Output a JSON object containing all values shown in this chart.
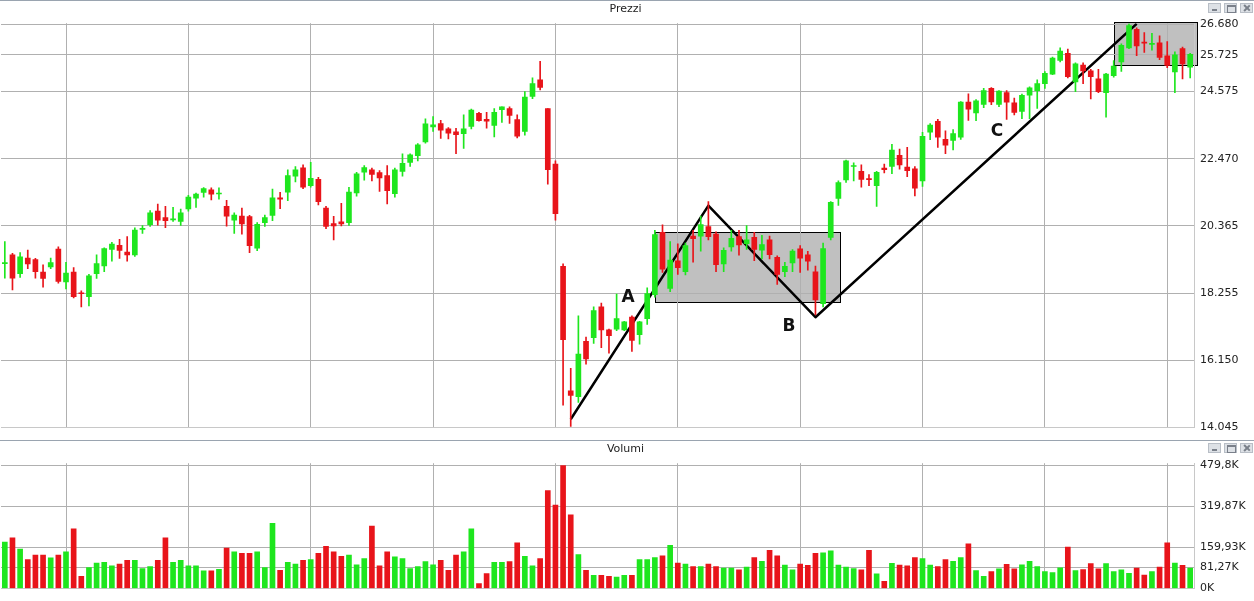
{
  "chart_data": [
    {
      "type": "candlestick",
      "title": "Prezzi",
      "categories": [
        null,
        null,
        null,
        null,
        null,
        null,
        null,
        null,
        null,
        null,
        null,
        null,
        null,
        null,
        null,
        null,
        null,
        null,
        null,
        null,
        null,
        null,
        null,
        null,
        null,
        null,
        null,
        null,
        null,
        null,
        null,
        null,
        null,
        null,
        null,
        null,
        null,
        null,
        null,
        null,
        null,
        null,
        null,
        null,
        null,
        null,
        null,
        null,
        null,
        null,
        null,
        null,
        null,
        null,
        null,
        null,
        null,
        null,
        null,
        null,
        null,
        null,
        null,
        null,
        null,
        null,
        null,
        null,
        null,
        null,
        null,
        null,
        null,
        null,
        null,
        null,
        null,
        null,
        null,
        null,
        null,
        null,
        null,
        null,
        null,
        null,
        null,
        null,
        null,
        null,
        null,
        null,
        null,
        null,
        null,
        null,
        null,
        null,
        null,
        null,
        null,
        null,
        null,
        null,
        null,
        null,
        null,
        null,
        null,
        null,
        null,
        null,
        null,
        null,
        null,
        null,
        null,
        null,
        null,
        null,
        null,
        null,
        null,
        null,
        null,
        null,
        null,
        null,
        null,
        null,
        null,
        null,
        null,
        null,
        null,
        null,
        null,
        null,
        null,
        null,
        null,
        null,
        null,
        null,
        null,
        null,
        null,
        null,
        null,
        null,
        null,
        null,
        null,
        null,
        null,
        null
      ],
      "ohlc": [
        [
          19180,
          19875,
          18725,
          19200
        ],
        [
          19455,
          19505,
          18355,
          18725
        ],
        [
          18865,
          19525,
          18745,
          19395
        ],
        [
          19355,
          19605,
          19025,
          19175
        ],
        [
          19305,
          19345,
          18725,
          18925
        ],
        [
          18915,
          19145,
          18445,
          18715
        ],
        [
          19075,
          19355,
          19025,
          19215
        ],
        [
          19635,
          19705,
          18565,
          18625
        ],
        [
          18605,
          19225,
          18385,
          18885
        ],
        [
          18915,
          19055,
          18105,
          18145
        ],
        [
          18255,
          18325,
          17825,
          18235
        ],
        [
          18145,
          18845,
          17855,
          18795
        ],
        [
          18865,
          19455,
          18715,
          19185
        ],
        [
          19105,
          19675,
          18925,
          19655
        ],
        [
          19625,
          19845,
          19255,
          19795
        ],
        [
          19755,
          19945,
          19345,
          19595
        ],
        [
          19545,
          20025,
          19255,
          19455
        ],
        [
          19455,
          20305,
          19405,
          20235
        ],
        [
          20255,
          20375,
          20125,
          20275
        ],
        [
          20405,
          20845,
          20345,
          20775
        ],
        [
          20825,
          21045,
          20385,
          20545
        ],
        [
          20625,
          20975,
          20305,
          20525
        ],
        [
          20555,
          20945,
          20505,
          20565
        ],
        [
          20505,
          20895,
          20375,
          20775
        ],
        [
          20895,
          21325,
          20825,
          21265
        ],
        [
          21235,
          21395,
          20945,
          21365
        ],
        [
          21415,
          21565,
          21265,
          21535
        ],
        [
          21495,
          21555,
          21175,
          21355
        ],
        [
          21365,
          21555,
          21205,
          21375
        ],
        [
          20975,
          21165,
          20355,
          20665
        ],
        [
          20545,
          20775,
          20125,
          20705
        ],
        [
          20675,
          20925,
          20105,
          20425
        ],
        [
          20655,
          20695,
          19525,
          19745
        ],
        [
          19665,
          20465,
          19585,
          20415
        ],
        [
          20465,
          20705,
          20345,
          20625
        ],
        [
          20695,
          21515,
          20525,
          21245
        ],
        [
          21245,
          21415,
          20905,
          21205
        ],
        [
          21425,
          22125,
          21155,
          21945
        ],
        [
          21925,
          22225,
          21745,
          22125
        ],
        [
          22185,
          22275,
          21535,
          21575
        ],
        [
          21625,
          22355,
          21575,
          21855
        ],
        [
          21825,
          21885,
          21025,
          21125
        ],
        [
          20925,
          20975,
          20275,
          20345
        ],
        [
          20435,
          20665,
          19925,
          20365
        ],
        [
          20495,
          21075,
          20365,
          20425
        ],
        [
          20465,
          21575,
          20375,
          21425
        ],
        [
          21395,
          22045,
          21295,
          21995
        ],
        [
          22045,
          22255,
          21795,
          22195
        ],
        [
          22125,
          22175,
          21775,
          21975
        ],
        [
          22035,
          22095,
          21445,
          21865
        ],
        [
          21945,
          22255,
          21055,
          21465
        ],
        [
          21375,
          22175,
          21265,
          22125
        ],
        [
          22075,
          22625,
          21925,
          22325
        ],
        [
          22355,
          22625,
          22225,
          22595
        ],
        [
          22565,
          22945,
          22405,
          22905
        ],
        [
          22995,
          23725,
          22955,
          23565
        ],
        [
          23465,
          23795,
          23325,
          23535
        ],
        [
          23575,
          23675,
          23105,
          23365
        ],
        [
          23405,
          23445,
          23095,
          23275
        ],
        [
          23315,
          23425,
          22625,
          23225
        ],
        [
          23255,
          23845,
          22795,
          23405
        ],
        [
          23485,
          24025,
          23405,
          23995
        ],
        [
          23895,
          23925,
          23645,
          23665
        ],
        [
          23705,
          23925,
          23425,
          23645
        ],
        [
          23515,
          24045,
          23155,
          23925
        ],
        [
          24005,
          24095,
          23605,
          24095
        ],
        [
          24045,
          24095,
          23575,
          23825
        ],
        [
          23695,
          23845,
          23125,
          23175
        ],
        [
          23325,
          24575,
          23205,
          24405
        ],
        [
          24425,
          25005,
          24355,
          24825
        ],
        [
          24945,
          25525,
          24625,
          24705
        ],
        [
          24045,
          24045,
          21675,
          22125
        ],
        [
          22305,
          22405,
          20545,
          20745
        ],
        [
          19095,
          19175,
          14745,
          16795
        ],
        [
          15195,
          15895,
          14075,
          15045
        ],
        [
          15005,
          17545,
          14825,
          16345
        ],
        [
          16745,
          16875,
          16025,
          16195
        ],
        [
          16855,
          17825,
          16675,
          17705
        ],
        [
          17825,
          17945,
          16545,
          17105
        ],
        [
          17105,
          17125,
          16375,
          16925
        ],
        [
          17125,
          18225,
          17075,
          17455
        ],
        [
          17105,
          17375,
          17075,
          17355
        ],
        [
          17505,
          17545,
          16425,
          16775
        ],
        [
          16955,
          17375,
          16655,
          17355
        ],
        [
          17455,
          18425,
          17275,
          18245
        ],
        [
          18205,
          20225,
          18125,
          20095
        ],
        [
          20165,
          20395,
          18905,
          19005
        ],
        [
          18405,
          19875,
          18305,
          19295
        ],
        [
          19265,
          19805,
          18845,
          19055
        ],
        [
          18925,
          19825,
          18825,
          19745
        ],
        [
          20045,
          20225,
          19225,
          19965
        ],
        [
          20045,
          20675,
          19575,
          20405
        ],
        [
          20345,
          21125,
          19925,
          20025
        ],
        [
          20105,
          20175,
          18925,
          19145
        ],
        [
          19175,
          19675,
          18925,
          19595
        ],
        [
          19705,
          20225,
          19575,
          19975
        ],
        [
          20025,
          20225,
          19445,
          19765
        ],
        [
          19805,
          20375,
          19625,
          19925
        ],
        [
          20005,
          20165,
          19275,
          19625
        ],
        [
          19605,
          20065,
          19325,
          19775
        ],
        [
          19925,
          20045,
          19325,
          19465
        ],
        [
          19375,
          19425,
          18525,
          18845
        ],
        [
          18925,
          19225,
          18775,
          19095
        ],
        [
          19205,
          19625,
          18925,
          19575
        ],
        [
          19645,
          19745,
          18905,
          19355
        ],
        [
          19455,
          19565,
          18975,
          19255
        ],
        [
          18925,
          19105,
          17575,
          18045
        ],
        [
          17925,
          19825,
          17825,
          19655
        ],
        [
          20005,
          21125,
          19925,
          21105
        ],
        [
          21225,
          21775,
          21005,
          21725
        ],
        [
          21805,
          22425,
          21725,
          22405
        ],
        [
          22225,
          22345,
          21775,
          22235
        ],
        [
          22075,
          22275,
          21575,
          21825
        ],
        [
          21835,
          21975,
          21625,
          21815
        ],
        [
          21625,
          22075,
          20975,
          22045
        ],
        [
          22175,
          22305,
          22025,
          22125
        ],
        [
          22225,
          22925,
          22005,
          22745
        ],
        [
          22575,
          22775,
          22145,
          22275
        ],
        [
          22205,
          22825,
          21905,
          22095
        ],
        [
          22155,
          22225,
          21305,
          21545
        ],
        [
          21775,
          23295,
          21605,
          23175
        ],
        [
          23305,
          23575,
          23065,
          23525
        ],
        [
          23645,
          23705,
          22825,
          23145
        ],
        [
          23075,
          23345,
          22625,
          22895
        ],
        [
          23045,
          23385,
          22745,
          23255
        ],
        [
          23145,
          24265,
          23075,
          24245
        ],
        [
          24245,
          24505,
          23675,
          24025
        ],
        [
          23905,
          24325,
          23665,
          24285
        ],
        [
          24175,
          24675,
          24075,
          24605
        ],
        [
          24675,
          24705,
          24165,
          24255
        ],
        [
          24175,
          24605,
          24105,
          24595
        ],
        [
          24545,
          24605,
          23705,
          24245
        ],
        [
          24225,
          24375,
          23845,
          23925
        ],
        [
          23955,
          24495,
          23725,
          24455
        ],
        [
          24465,
          24725,
          23725,
          24695
        ],
        [
          24605,
          24945,
          24045,
          24825
        ],
        [
          24825,
          25205,
          24675,
          25145
        ],
        [
          25125,
          25655,
          25105,
          25625
        ],
        [
          25555,
          25945,
          25505,
          25845
        ],
        [
          25775,
          25905,
          25005,
          25045
        ],
        [
          24875,
          25475,
          24575,
          25445
        ],
        [
          25405,
          25475,
          24825,
          25225
        ],
        [
          25225,
          25275,
          24345,
          25045
        ],
        [
          24975,
          25275,
          24545,
          24575
        ],
        [
          24545,
          25145,
          23775,
          25125
        ],
        [
          25075,
          25545,
          25025,
          25375
        ],
        [
          25505,
          26075,
          25205,
          26025
        ],
        [
          25945,
          26700,
          25925,
          26645
        ],
        [
          26525,
          26575,
          25705,
          26005
        ],
        [
          26125,
          26425,
          25805,
          26095
        ],
        [
          26055,
          26405,
          25875,
          26075
        ],
        [
          26105,
          26325,
          25575,
          25645
        ],
        [
          25695,
          26145,
          25325,
          25395
        ],
        [
          25195,
          25825,
          24545,
          25725
        ],
        [
          25925,
          25975,
          24975,
          25445
        ],
        [
          25345,
          25775,
          25005,
          25745
        ]
      ],
      "colors": [
        "#1ee61e",
        "#e8141a",
        "#1ee61e",
        "#e8141a",
        "#e8141a",
        "#e8141a",
        "#1ee61e",
        "#e8141a",
        "#1ee61e",
        "#e8141a",
        "#e8141a",
        "#1ee61e",
        "#1ee61e",
        "#1ee61e",
        "#1ee61e",
        "#e8141a",
        "#e8141a",
        "#1ee61e",
        "#1ee61e",
        "#1ee61e",
        "#e8141a",
        "#e8141a",
        "#1ee61e",
        "#1ee61e",
        "#1ee61e",
        "#1ee61e",
        "#1ee61e",
        "#e8141a",
        "#1ee61e",
        "#e8141a",
        "#1ee61e",
        "#e8141a",
        "#e8141a",
        "#1ee61e",
        "#1ee61e",
        "#1ee61e",
        "#e8141a",
        "#1ee61e",
        "#1ee61e",
        "#e8141a",
        "#1ee61e",
        "#e8141a",
        "#e8141a",
        "#e8141a",
        "#e8141a",
        "#1ee61e",
        "#1ee61e",
        "#1ee61e",
        "#e8141a",
        "#e8141a",
        "#e8141a",
        "#1ee61e",
        "#1ee61e",
        "#1ee61e",
        "#1ee61e",
        "#1ee61e",
        "#1ee61e",
        "#e8141a",
        "#e8141a",
        "#e8141a",
        "#1ee61e",
        "#1ee61e",
        "#e8141a",
        "#e8141a",
        "#1ee61e",
        "#1ee61e",
        "#e8141a",
        "#e8141a",
        "#1ee61e",
        "#1ee61e",
        "#e8141a",
        "#e8141a",
        "#e8141a",
        "#e8141a",
        "#e8141a",
        "#1ee61e",
        "#e8141a",
        "#1ee61e",
        "#e8141a",
        "#e8141a",
        "#1ee61e",
        "#1ee61e",
        "#e8141a",
        "#1ee61e",
        "#1ee61e",
        "#1ee61e",
        "#e8141a",
        "#1ee61e",
        "#e8141a",
        "#1ee61e",
        "#e8141a",
        "#1ee61e",
        "#e8141a",
        "#e8141a",
        "#1ee61e",
        "#1ee61e",
        "#e8141a",
        "#1ee61e",
        "#e8141a",
        "#1ee61e",
        "#e8141a",
        "#e8141a",
        "#1ee61e",
        "#1ee61e",
        "#e8141a",
        "#e8141a",
        "#e8141a",
        "#1ee61e",
        "#1ee61e",
        "#1ee61e",
        "#1ee61e",
        "#1ee61e",
        "#e8141a",
        "#e8141a",
        "#1ee61e",
        "#e8141a",
        "#1ee61e",
        "#e8141a",
        "#e8141a",
        "#e8141a",
        "#1ee61e",
        "#1ee61e",
        "#e8141a",
        "#e8141a",
        "#1ee61e",
        "#1ee61e",
        "#e8141a",
        "#1ee61e",
        "#1ee61e",
        "#e8141a",
        "#1ee61e",
        "#e8141a",
        "#e8141a",
        "#1ee61e",
        "#1ee61e",
        "#1ee61e",
        "#1ee61e",
        "#1ee61e",
        "#1ee61e",
        "#e8141a",
        "#1ee61e",
        "#e8141a",
        "#e8141a",
        "#e8141a",
        "#1ee61e",
        "#1ee61e",
        "#1ee61e",
        "#1ee61e",
        "#e8141a",
        "#e8141a",
        "#1ee61e",
        "#e8141a",
        "#e8141a",
        "#1ee61e",
        "#e8141a",
        "#1ee61e"
      ],
      "series": [
        {
          "type": "line",
          "color": "#000000",
          "values": [
            null,
            null,
            null,
            null,
            null,
            null,
            null,
            null,
            null,
            null,
            null,
            null,
            null,
            null,
            null,
            null,
            null,
            null,
            null,
            null,
            null,
            null,
            null,
            null,
            null,
            null,
            null,
            null,
            null,
            null,
            null,
            null,
            null,
            null,
            null,
            null,
            null,
            null,
            null,
            null,
            null,
            null,
            null,
            null,
            null,
            null,
            null,
            null,
            null,
            null,
            null,
            null,
            null,
            null,
            null,
            null,
            null,
            null,
            null,
            null,
            null,
            null,
            null,
            null,
            null,
            null,
            null,
            null,
            null,
            null,
            null,
            null,
            null,
            null,
            14300,
            null,
            null,
            null,
            null,
            null,
            null,
            null,
            null,
            null,
            null,
            null,
            null,
            null,
            null,
            null,
            null,
            null,
            21000,
            null,
            null,
            null,
            null,
            null,
            null,
            null,
            null,
            null,
            null,
            null,
            null,
            null,
            17500,
            null,
            null,
            null,
            null,
            null,
            null,
            null,
            null,
            null,
            null,
            null,
            null,
            null,
            null,
            null,
            null,
            null,
            null,
            null,
            null,
            null,
            null,
            null,
            null,
            null,
            null,
            null,
            null,
            null,
            null,
            null,
            null,
            null,
            null,
            null,
            null,
            null,
            null,
            null,
            null,
            null,
            26700,
            null,
            null,
            null,
            null,
            null,
            null,
            null
          ]
        }
      ],
      "ylim": [
        14045,
        26720
      ],
      "yticks": [
        {
          "value": 14045,
          "label": "14.045"
        },
        {
          "value": 16150,
          "label": "16.150"
        },
        {
          "value": 18255,
          "label": "18.255"
        },
        {
          "value": 20365,
          "label": "20.365"
        },
        {
          "value": 22470,
          "label": "22.470"
        },
        {
          "value": 24575,
          "label": "24.575"
        },
        {
          "value": 25725,
          "label": "25.725"
        },
        {
          "value": 26680,
          "label": "26.680"
        }
      ],
      "grid": true,
      "tick_labels": "y",
      "annotations": [
        "A",
        "B",
        "C"
      ]
    },
    {
      "type": "bar",
      "title": "Volumi",
      "categories": [
        null,
        null,
        null,
        null,
        null,
        null,
        null,
        null,
        null,
        null,
        null,
        null,
        null,
        null,
        null,
        null,
        null,
        null,
        null,
        null,
        null,
        null,
        null,
        null,
        null,
        null,
        null,
        null,
        null,
        null,
        null,
        null,
        null,
        null,
        null,
        null,
        null,
        null,
        null,
        null,
        null,
        null,
        null,
        null,
        null,
        null,
        null,
        null,
        null,
        null,
        null,
        null,
        null,
        null,
        null,
        null,
        null,
        null,
        null,
        null,
        null,
        null,
        null,
        null,
        null,
        null,
        null,
        null,
        null,
        null,
        null,
        null,
        null,
        null,
        null,
        null,
        null,
        null,
        null,
        null,
        null,
        null,
        null,
        null,
        null,
        null,
        null,
        null,
        null,
        null,
        null,
        null,
        null,
        null,
        null,
        null,
        null,
        null,
        null,
        null,
        null,
        null,
        null,
        null,
        null,
        null,
        null,
        null,
        null,
        null,
        null,
        null,
        null,
        null,
        null,
        null,
        null,
        null,
        null,
        null,
        null,
        null,
        null,
        null,
        null,
        null,
        null,
        null,
        null,
        null,
        null,
        null,
        null,
        null,
        null,
        null,
        null,
        null,
        null,
        null,
        null,
        null,
        null,
        null,
        null,
        null,
        null,
        null,
        null,
        null,
        null,
        null,
        null,
        null,
        null,
        null
      ],
      "values": [
        181,
        197,
        153,
        112,
        130,
        130,
        119,
        130,
        143,
        232,
        47,
        81,
        99,
        102,
        88,
        95,
        109,
        109,
        77,
        85,
        109,
        197,
        102,
        109,
        88,
        88,
        68,
        68,
        74,
        157,
        143,
        137,
        137,
        143,
        81,
        254,
        70,
        102,
        95,
        109,
        112,
        137,
        164,
        143,
        125,
        130,
        92,
        116,
        243,
        88,
        143,
        123,
        116,
        77,
        85,
        105,
        92,
        109,
        70,
        130,
        143,
        232,
        19,
        58,
        102,
        102,
        105,
        178,
        125,
        88,
        116,
        381,
        325,
        479,
        287,
        132,
        70,
        51,
        51,
        47,
        44,
        51,
        51,
        112,
        112,
        120,
        127,
        168,
        99,
        95,
        85,
        85,
        95,
        85,
        79,
        79,
        72,
        83,
        120,
        106,
        148,
        127,
        91,
        72,
        95,
        90,
        137,
        139,
        146,
        91,
        83,
        77,
        72,
        148,
        57,
        28,
        98,
        91,
        88,
        120,
        116,
        91,
        85,
        112,
        106,
        120,
        174,
        69,
        47,
        66,
        76,
        94,
        76,
        92,
        106,
        85,
        66,
        62,
        80,
        161,
        69,
        73,
        97,
        76,
        97,
        66,
        72,
        59,
        79,
        52,
        66,
        83,
        178,
        99,
        90,
        79
      ],
      "colors": [
        "#1ee61e",
        "#e8141a",
        "#1ee61e",
        "#e8141a",
        "#e8141a",
        "#e8141a",
        "#1ee61e",
        "#e8141a",
        "#1ee61e",
        "#e8141a",
        "#e8141a",
        "#1ee61e",
        "#1ee61e",
        "#1ee61e",
        "#1ee61e",
        "#e8141a",
        "#e8141a",
        "#1ee61e",
        "#1ee61e",
        "#1ee61e",
        "#e8141a",
        "#e8141a",
        "#1ee61e",
        "#1ee61e",
        "#1ee61e",
        "#1ee61e",
        "#1ee61e",
        "#e8141a",
        "#1ee61e",
        "#e8141a",
        "#1ee61e",
        "#e8141a",
        "#e8141a",
        "#1ee61e",
        "#1ee61e",
        "#1ee61e",
        "#e8141a",
        "#1ee61e",
        "#1ee61e",
        "#e8141a",
        "#1ee61e",
        "#e8141a",
        "#e8141a",
        "#e8141a",
        "#e8141a",
        "#1ee61e",
        "#1ee61e",
        "#1ee61e",
        "#e8141a",
        "#e8141a",
        "#e8141a",
        "#1ee61e",
        "#1ee61e",
        "#1ee61e",
        "#1ee61e",
        "#1ee61e",
        "#1ee61e",
        "#e8141a",
        "#e8141a",
        "#e8141a",
        "#1ee61e",
        "#1ee61e",
        "#e8141a",
        "#e8141a",
        "#1ee61e",
        "#1ee61e",
        "#e8141a",
        "#e8141a",
        "#1ee61e",
        "#1ee61e",
        "#e8141a",
        "#e8141a",
        "#e8141a",
        "#e8141a",
        "#e8141a",
        "#1ee61e",
        "#e8141a",
        "#1ee61e",
        "#e8141a",
        "#e8141a",
        "#1ee61e",
        "#1ee61e",
        "#e8141a",
        "#1ee61e",
        "#1ee61e",
        "#1ee61e",
        "#e8141a",
        "#1ee61e",
        "#e8141a",
        "#1ee61e",
        "#e8141a",
        "#1ee61e",
        "#e8141a",
        "#e8141a",
        "#1ee61e",
        "#1ee61e",
        "#e8141a",
        "#1ee61e",
        "#e8141a",
        "#1ee61e",
        "#e8141a",
        "#e8141a",
        "#1ee61e",
        "#1ee61e",
        "#e8141a",
        "#e8141a",
        "#e8141a",
        "#1ee61e",
        "#1ee61e",
        "#1ee61e",
        "#1ee61e",
        "#1ee61e",
        "#e8141a",
        "#e8141a",
        "#1ee61e",
        "#e8141a",
        "#1ee61e",
        "#e8141a",
        "#e8141a",
        "#e8141a",
        "#1ee61e",
        "#1ee61e",
        "#e8141a",
        "#e8141a",
        "#1ee61e",
        "#1ee61e",
        "#e8141a",
        "#1ee61e",
        "#1ee61e",
        "#e8141a",
        "#1ee61e",
        "#e8141a",
        "#e8141a",
        "#1ee61e",
        "#1ee61e",
        "#1ee61e",
        "#1ee61e",
        "#1ee61e",
        "#1ee61e",
        "#e8141a",
        "#1ee61e",
        "#e8141a",
        "#e8141a",
        "#e8141a",
        "#1ee61e",
        "#1ee61e",
        "#1ee61e",
        "#1ee61e",
        "#e8141a",
        "#e8141a",
        "#1ee61e",
        "#e8141a",
        "#e8141a",
        "#1ee61e",
        "#e8141a",
        "#1ee61e"
      ],
      "ylim": [
        0,
        488
      ],
      "yticks": [
        {
          "value": 0,
          "label": "0K"
        },
        {
          "value": 81.27,
          "label": "81,27K"
        },
        {
          "value": 159.93,
          "label": "159,93K"
        },
        {
          "value": 319.87,
          "label": "319,87K"
        },
        {
          "value": 479.8,
          "label": "479,8K"
        }
      ],
      "grid": true,
      "tick_labels": "y"
    }
  ]
}
